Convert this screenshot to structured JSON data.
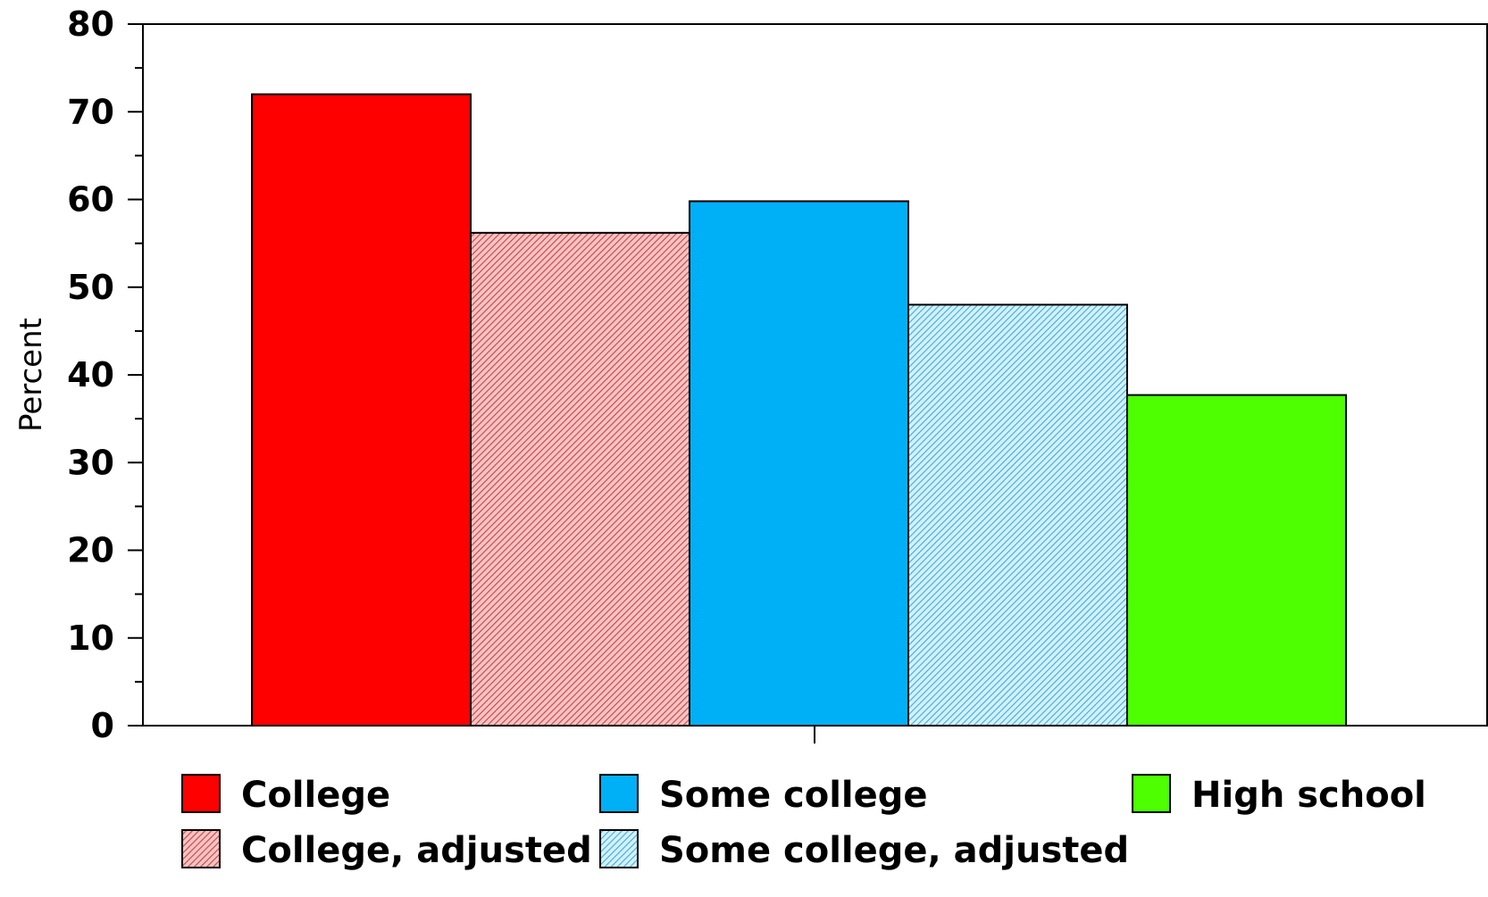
{
  "chart_data": {
    "type": "bar",
    "title": "",
    "xlabel": "",
    "ylabel": "Percent",
    "ylim": [
      0,
      80
    ],
    "yticks": [
      0,
      10,
      20,
      30,
      40,
      50,
      60,
      70,
      80
    ],
    "grid": false,
    "legend_position": "bottom",
    "series": [
      {
        "name": "College",
        "value": 72,
        "color": "#ff0000",
        "pattern": "solid"
      },
      {
        "name": "College, adjusted",
        "value": 56.2,
        "color": "#ee9a9a",
        "pattern": "hatched"
      },
      {
        "name": "Some college",
        "value": 59.8,
        "color": "#00b0f6",
        "pattern": "solid"
      },
      {
        "name": "Some college, adjusted",
        "value": 48,
        "color": "#a8def4",
        "pattern": "hatched"
      },
      {
        "name": "High school",
        "value": 37.7,
        "color": "#4dff00",
        "pattern": "solid"
      }
    ]
  }
}
